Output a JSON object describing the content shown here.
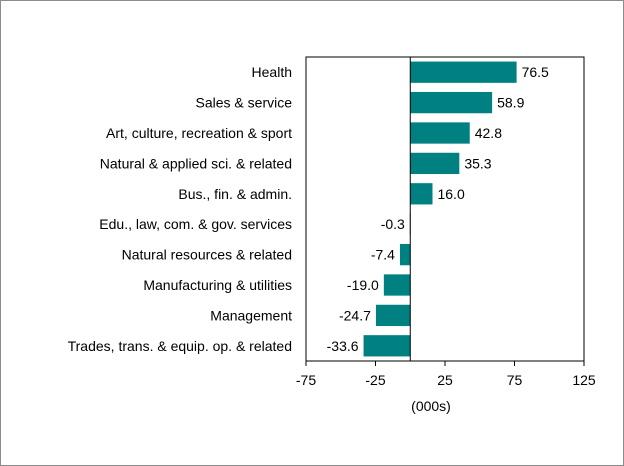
{
  "chart_data": {
    "type": "bar",
    "orientation": "horizontal",
    "categories": [
      "Health",
      "Sales & service",
      "Art, culture, recreation & sport",
      "Natural & applied sci. & related",
      "Bus., fin. & admin.",
      "Edu., law, com. & gov. services",
      "Natural resources & related",
      "Manufacturing & utilities",
      "Management",
      "Trades, trans. & equip. op. & related"
    ],
    "values": [
      76.5,
      58.9,
      42.8,
      35.3,
      16.0,
      -0.3,
      -7.4,
      -19.0,
      -24.7,
      -33.6
    ],
    "value_labels": [
      "76.5",
      "58.9",
      "42.8",
      "35.3",
      "16.0",
      "-0.3",
      "-7.4",
      "-19.0",
      "-24.7",
      "-33.6"
    ],
    "xlim": [
      -75,
      125
    ],
    "xticks": [
      -75,
      -25,
      25,
      75,
      125
    ],
    "xtick_labels": [
      "-75",
      "-25",
      "25",
      "75",
      "125"
    ],
    "xlabel": "(000s)",
    "title": "",
    "grid": false,
    "legend": "none",
    "bar_color": "#008080"
  }
}
